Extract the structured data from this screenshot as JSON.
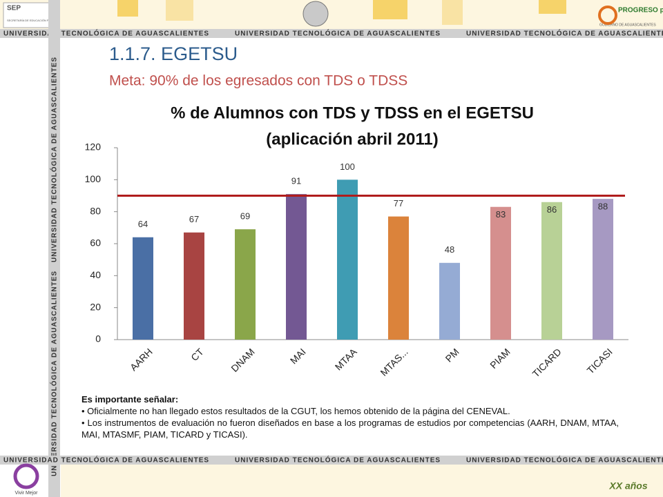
{
  "header": {
    "banner_text": "UNIVERSIDAD TECNOLÓGICA DE AGUASCALIENTES",
    "left_logo": "SEP",
    "left_logo_caption": "SECRETARÍA DE EDUCACIÓN PÚBLICA",
    "right_logo": "PROGRESO para todos",
    "right_logo_caption": "GOBIERNO DE AGUASCALIENTES",
    "side_text": "UNIVERSIDAD TECNOLÓGICA DE AGUASCALIENTES"
  },
  "slide": {
    "heading": "1.1.7.  EGETSU",
    "subheading": "Meta: 90% de los egresados con TDS o TDSS"
  },
  "chart_data": {
    "type": "bar",
    "title": "% de Alumnos con TDS y TDSS en el EGETSU",
    "subtitle": "(aplicación  abril 2011)",
    "categories": [
      "AARH",
      "CT",
      "DNAM",
      "MAI",
      "MTAA",
      "MTAS...",
      "PM",
      "PIAM",
      "TICARD",
      "TICASI"
    ],
    "values": [
      64,
      67,
      69,
      91,
      100,
      77,
      48,
      83,
      86,
      88
    ],
    "colors": [
      "#4a6fa5",
      "#a84442",
      "#8aa64a",
      "#735893",
      "#3f9cb3",
      "#db833b",
      "#95abd4",
      "#d58f8e",
      "#b8d196",
      "#a699c2"
    ],
    "target": 90,
    "target_color": "#b01c1c",
    "ylim": [
      0,
      120
    ],
    "yticks": [
      0,
      20,
      40,
      60,
      80,
      100,
      120
    ],
    "grid": false
  },
  "notes": {
    "heading": "Es importante señalar:",
    "bullets": [
      "Oficialmente no han llegado estos resultados de la CGUT, los hemos obtenido de la página del CENEVAL.",
      "Los instrumentos de evaluación no  fueron diseñados en base a los programas de estudios por competencias (AARH, DNAM, MTAA, MAI, MTASMF, PIAM, TICARD y TICASI)."
    ]
  },
  "footer": {
    "left_logo": "Vivir Mejor",
    "right_logo": "XX años"
  }
}
